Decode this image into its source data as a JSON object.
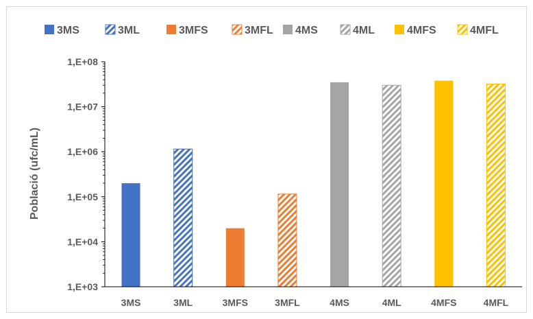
{
  "chart_data": {
    "type": "bar",
    "title": "",
    "xlabel": "",
    "ylabel": "Població (ufc/mL)",
    "yscale": "log",
    "ylim": [
      1000,
      100000000
    ],
    "y_ticks": [
      1000,
      10000,
      100000,
      1000000,
      10000000,
      100000000
    ],
    "y_tick_labels": [
      "1,E+03",
      "1,E+04",
      "1,E+05",
      "1,E+06",
      "1,E+07",
      "1,E+08"
    ],
    "categories": [
      "3MS",
      "3ML",
      "3MFS",
      "3MFL",
      "4MS",
      "4ML",
      "4MFS",
      "4MFL"
    ],
    "values": [
      200000,
      1150000,
      20000,
      115000,
      35000000,
      30000000,
      38000000,
      32000000
    ],
    "bar_styles": [
      {
        "color": "#4472c4",
        "pattern": "solid"
      },
      {
        "color": "#4472c4",
        "pattern": "diagonal-stripes"
      },
      {
        "color": "#ed7d31",
        "pattern": "solid"
      },
      {
        "color": "#ed7d31",
        "pattern": "diagonal-stripes"
      },
      {
        "color": "#a5a5a5",
        "pattern": "solid"
      },
      {
        "color": "#a5a5a5",
        "pattern": "diagonal-stripes"
      },
      {
        "color": "#ffc000",
        "pattern": "solid"
      },
      {
        "color": "#ffc000",
        "pattern": "diagonal-stripes"
      }
    ],
    "legend": {
      "position": "top",
      "entries": [
        "3MS",
        "3ML",
        "3MFS",
        "3MFL",
        "4MS",
        "4ML",
        "4MFS",
        "4MFL"
      ]
    },
    "grid": false
  }
}
